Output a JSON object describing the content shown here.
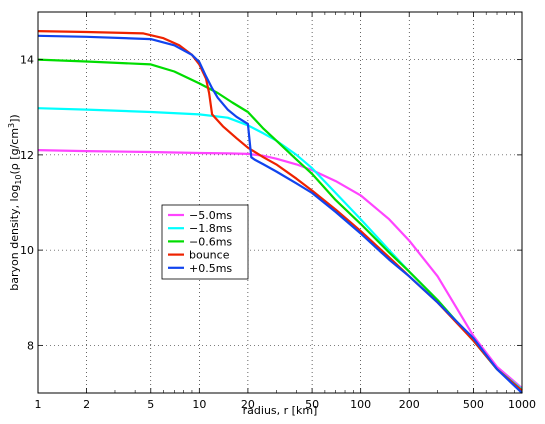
{
  "chart_data": {
    "type": "line",
    "title": "",
    "xlabel": "radius, r [km]",
    "ylabel": {
      "prefix": "baryon density, log",
      "sub": "10",
      "mid": "(ρ [g/cm",
      "sup": "3",
      "end": "])"
    },
    "xscale": "log",
    "xlim": [
      1,
      1000
    ],
    "ylim": [
      7.0,
      15.0
    ],
    "xticks": [
      1,
      2,
      5,
      10,
      20,
      50,
      100,
      200,
      500,
      1000
    ],
    "xtick_labels": [
      "1",
      "2",
      "5",
      "10",
      "20",
      "50",
      "100",
      "200",
      "500",
      "1000"
    ],
    "yticks": [
      8,
      10,
      12,
      14
    ],
    "ytick_labels": [
      "8",
      "10",
      "12",
      "14"
    ],
    "grid": true,
    "legend_position": "center-left",
    "series": [
      {
        "name": "−5.0ms",
        "color": "#ff44ff",
        "x": [
          1,
          2,
          5,
          10,
          15,
          20,
          25,
          30,
          40,
          50,
          70,
          100,
          150,
          200,
          300,
          500,
          700,
          1000
        ],
        "y": [
          12.1,
          12.08,
          12.06,
          12.04,
          12.03,
          12.02,
          11.98,
          11.92,
          11.8,
          11.68,
          11.45,
          11.15,
          10.65,
          10.2,
          9.45,
          8.2,
          7.55,
          7.1
        ]
      },
      {
        "name": "−1.8ms",
        "color": "#00ffff",
        "x": [
          1,
          2,
          5,
          10,
          15,
          20,
          25,
          30,
          40,
          50,
          70,
          100,
          150,
          200,
          300,
          500,
          700,
          1000
        ],
        "y": [
          12.98,
          12.95,
          12.9,
          12.85,
          12.78,
          12.62,
          12.45,
          12.3,
          12.0,
          11.72,
          11.2,
          10.65,
          10.0,
          9.55,
          8.95,
          8.1,
          7.5,
          7.08
        ]
      },
      {
        "name": "−0.6ms",
        "color": "#00dd00",
        "x": [
          1,
          2,
          5,
          7,
          10,
          13,
          16,
          20,
          25,
          30,
          40,
          50,
          70,
          100,
          150,
          200,
          300,
          500,
          700,
          1000
        ],
        "y": [
          14.0,
          13.96,
          13.9,
          13.75,
          13.5,
          13.3,
          13.1,
          12.9,
          12.55,
          12.3,
          11.9,
          11.6,
          11.05,
          10.55,
          9.95,
          9.55,
          8.95,
          8.1,
          7.5,
          7.05
        ]
      },
      {
        "name": "bounce",
        "color": "#ee2200",
        "x": [
          1,
          2,
          4.5,
          6,
          7.5,
          9,
          10,
          11,
          11.5,
          12,
          14,
          17,
          20,
          25,
          30,
          40,
          50,
          70,
          100,
          150,
          200,
          300,
          500,
          700,
          1000
        ],
        "y": [
          14.6,
          14.58,
          14.55,
          14.45,
          14.3,
          14.1,
          13.9,
          13.6,
          13.3,
          12.85,
          12.6,
          12.35,
          12.15,
          11.95,
          11.8,
          11.5,
          11.25,
          10.85,
          10.4,
          9.85,
          9.45,
          8.9,
          8.1,
          7.5,
          7.05
        ]
      },
      {
        "name": "+0.5ms",
        "color": "#1144ee",
        "x": [
          1,
          2,
          5,
          7,
          9,
          10,
          11,
          12,
          13,
          15,
          17,
          20,
          20.5,
          21,
          22,
          25,
          30,
          40,
          50,
          70,
          100,
          150,
          200,
          300,
          500,
          700,
          1000
        ],
        "y": [
          14.5,
          14.48,
          14.43,
          14.3,
          14.1,
          13.95,
          13.65,
          13.4,
          13.2,
          12.95,
          12.8,
          12.65,
          12.3,
          11.95,
          11.9,
          11.8,
          11.65,
          11.4,
          11.2,
          10.8,
          10.35,
          9.8,
          9.45,
          8.9,
          8.15,
          7.5,
          7.0
        ]
      }
    ]
  }
}
